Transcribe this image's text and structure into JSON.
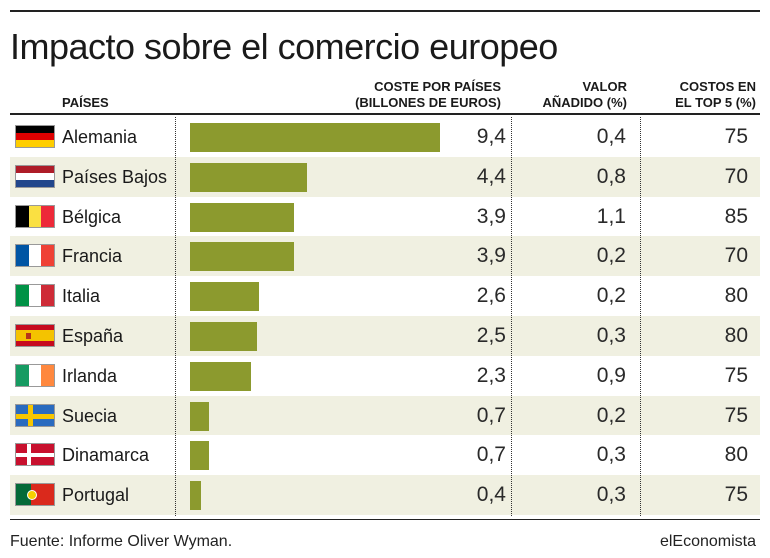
{
  "title": "Impacto sobre el comercio europeo",
  "headers": {
    "countries": "PAÍSES",
    "cost_line1": "COSTE POR PAÍSES",
    "cost_line2": "(BILLONES DE EUROS)",
    "va_line1": "VALOR",
    "va_line2": "AÑADIDO (%)",
    "top5_line1": "COSTOS EN",
    "top5_line2": "EL TOP 5 (%)"
  },
  "bar_color": "#8c9a2e",
  "row_alt_color": "#f0f0e1",
  "chart_data": {
    "type": "bar",
    "orientation": "horizontal",
    "title": "Impacto sobre el comercio europeo",
    "categories": [
      "Alemania",
      "Países Bajos",
      "Bélgica",
      "Francia",
      "Italia",
      "España",
      "Irlanda",
      "Suecia",
      "Dinamarca",
      "Portugal"
    ],
    "series": [
      {
        "name": "COSTE POR PAÍSES (BILLONES DE EUROS)",
        "values": [
          9.4,
          4.4,
          3.9,
          3.9,
          2.6,
          2.5,
          2.3,
          0.7,
          0.7,
          0.4
        ]
      }
    ],
    "xlim": [
      0,
      10
    ],
    "table_columns": [
      "VALOR AÑADIDO (%)",
      "COSTOS EN EL TOP 5 (%)"
    ]
  },
  "rows": [
    {
      "country": "Alemania",
      "flag": "germany-flag-icon",
      "cost": "9,4",
      "va": "0,4",
      "top5": "75"
    },
    {
      "country": "Países Bajos",
      "flag": "netherlands-flag-icon",
      "cost": "4,4",
      "va": "0,8",
      "top5": "70"
    },
    {
      "country": "Bélgica",
      "flag": "belgium-flag-icon",
      "cost": "3,9",
      "va": "1,1",
      "top5": "85"
    },
    {
      "country": "Francia",
      "flag": "france-flag-icon",
      "cost": "3,9",
      "va": "0,2",
      "top5": "70"
    },
    {
      "country": "Italia",
      "flag": "italy-flag-icon",
      "cost": "2,6",
      "va": "0,2",
      "top5": "80"
    },
    {
      "country": "España",
      "flag": "spain-flag-icon",
      "cost": "2,5",
      "va": "0,3",
      "top5": "80"
    },
    {
      "country": "Irlanda",
      "flag": "ireland-flag-icon",
      "cost": "2,3",
      "va": "0,9",
      "top5": "75"
    },
    {
      "country": "Suecia",
      "flag": "sweden-flag-icon",
      "cost": "0,7",
      "va": "0,2",
      "top5": "75"
    },
    {
      "country": "Dinamarca",
      "flag": "denmark-flag-icon",
      "cost": "0,7",
      "va": "0,3",
      "top5": "80"
    },
    {
      "country": "Portugal",
      "flag": "portugal-flag-icon",
      "cost": "0,4",
      "va": "0,3",
      "top5": "75"
    }
  ],
  "footer": {
    "source": "Fuente: Informe Oliver Wyman.",
    "brand": "elEconomista"
  }
}
